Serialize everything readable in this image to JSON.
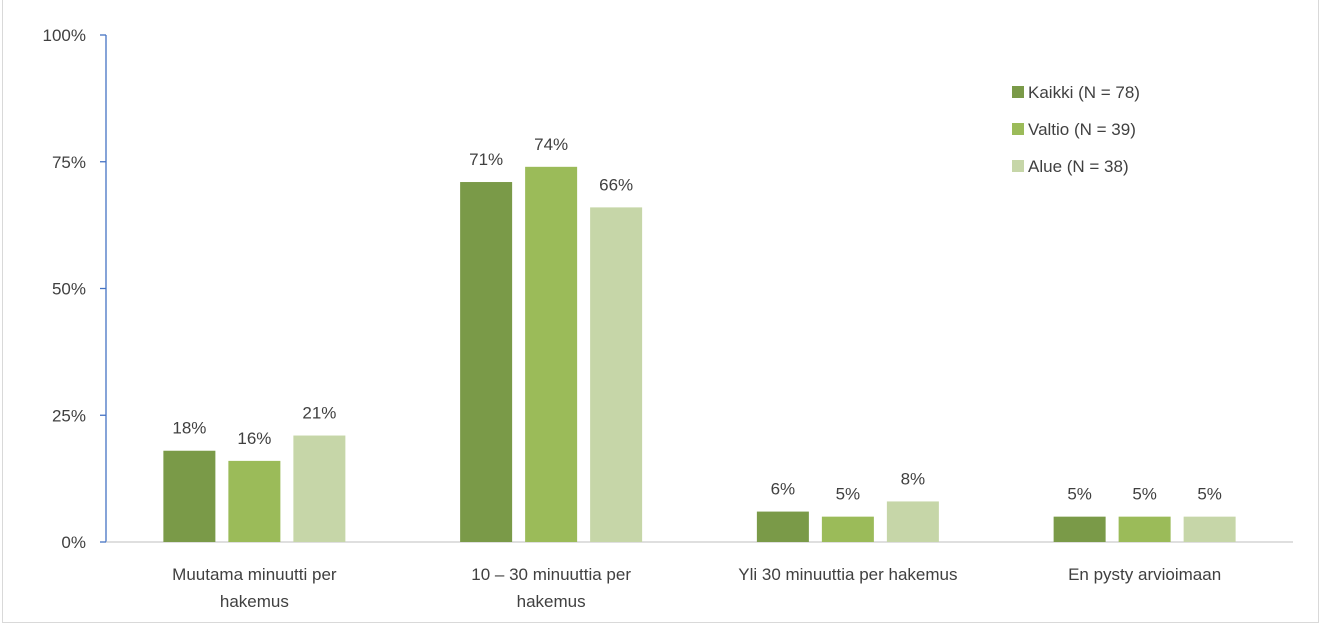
{
  "chart_data": {
    "type": "bar",
    "title": "",
    "xlabel": "",
    "ylabel": "",
    "ylim": [
      0,
      100
    ],
    "yticks": [
      0,
      25,
      50,
      75,
      100
    ],
    "ytick_labels": [
      "0%",
      "25%",
      "50%",
      "75%",
      "100%"
    ],
    "categories": [
      [
        "Muutama minuutti per",
        "hakemus"
      ],
      [
        "10 – 30 minuuttia per",
        "hakemus"
      ],
      [
        "Yli 30 minuuttia per hakemus"
      ],
      [
        "En pysty arvioimaan"
      ]
    ],
    "series": [
      {
        "name": "Kaikki (N = 78)",
        "color": "#7a9a48",
        "values": [
          18,
          71,
          6,
          5
        ]
      },
      {
        "name": "Valtio (N = 39)",
        "color": "#9bbb59",
        "values": [
          16,
          74,
          5,
          5
        ]
      },
      {
        "name": "Alue (N = 38)",
        "color": "#c6d6a8",
        "values": [
          21,
          66,
          8,
          5
        ]
      }
    ],
    "value_suffix": "%",
    "grid": false,
    "legend_position": "top-right"
  }
}
